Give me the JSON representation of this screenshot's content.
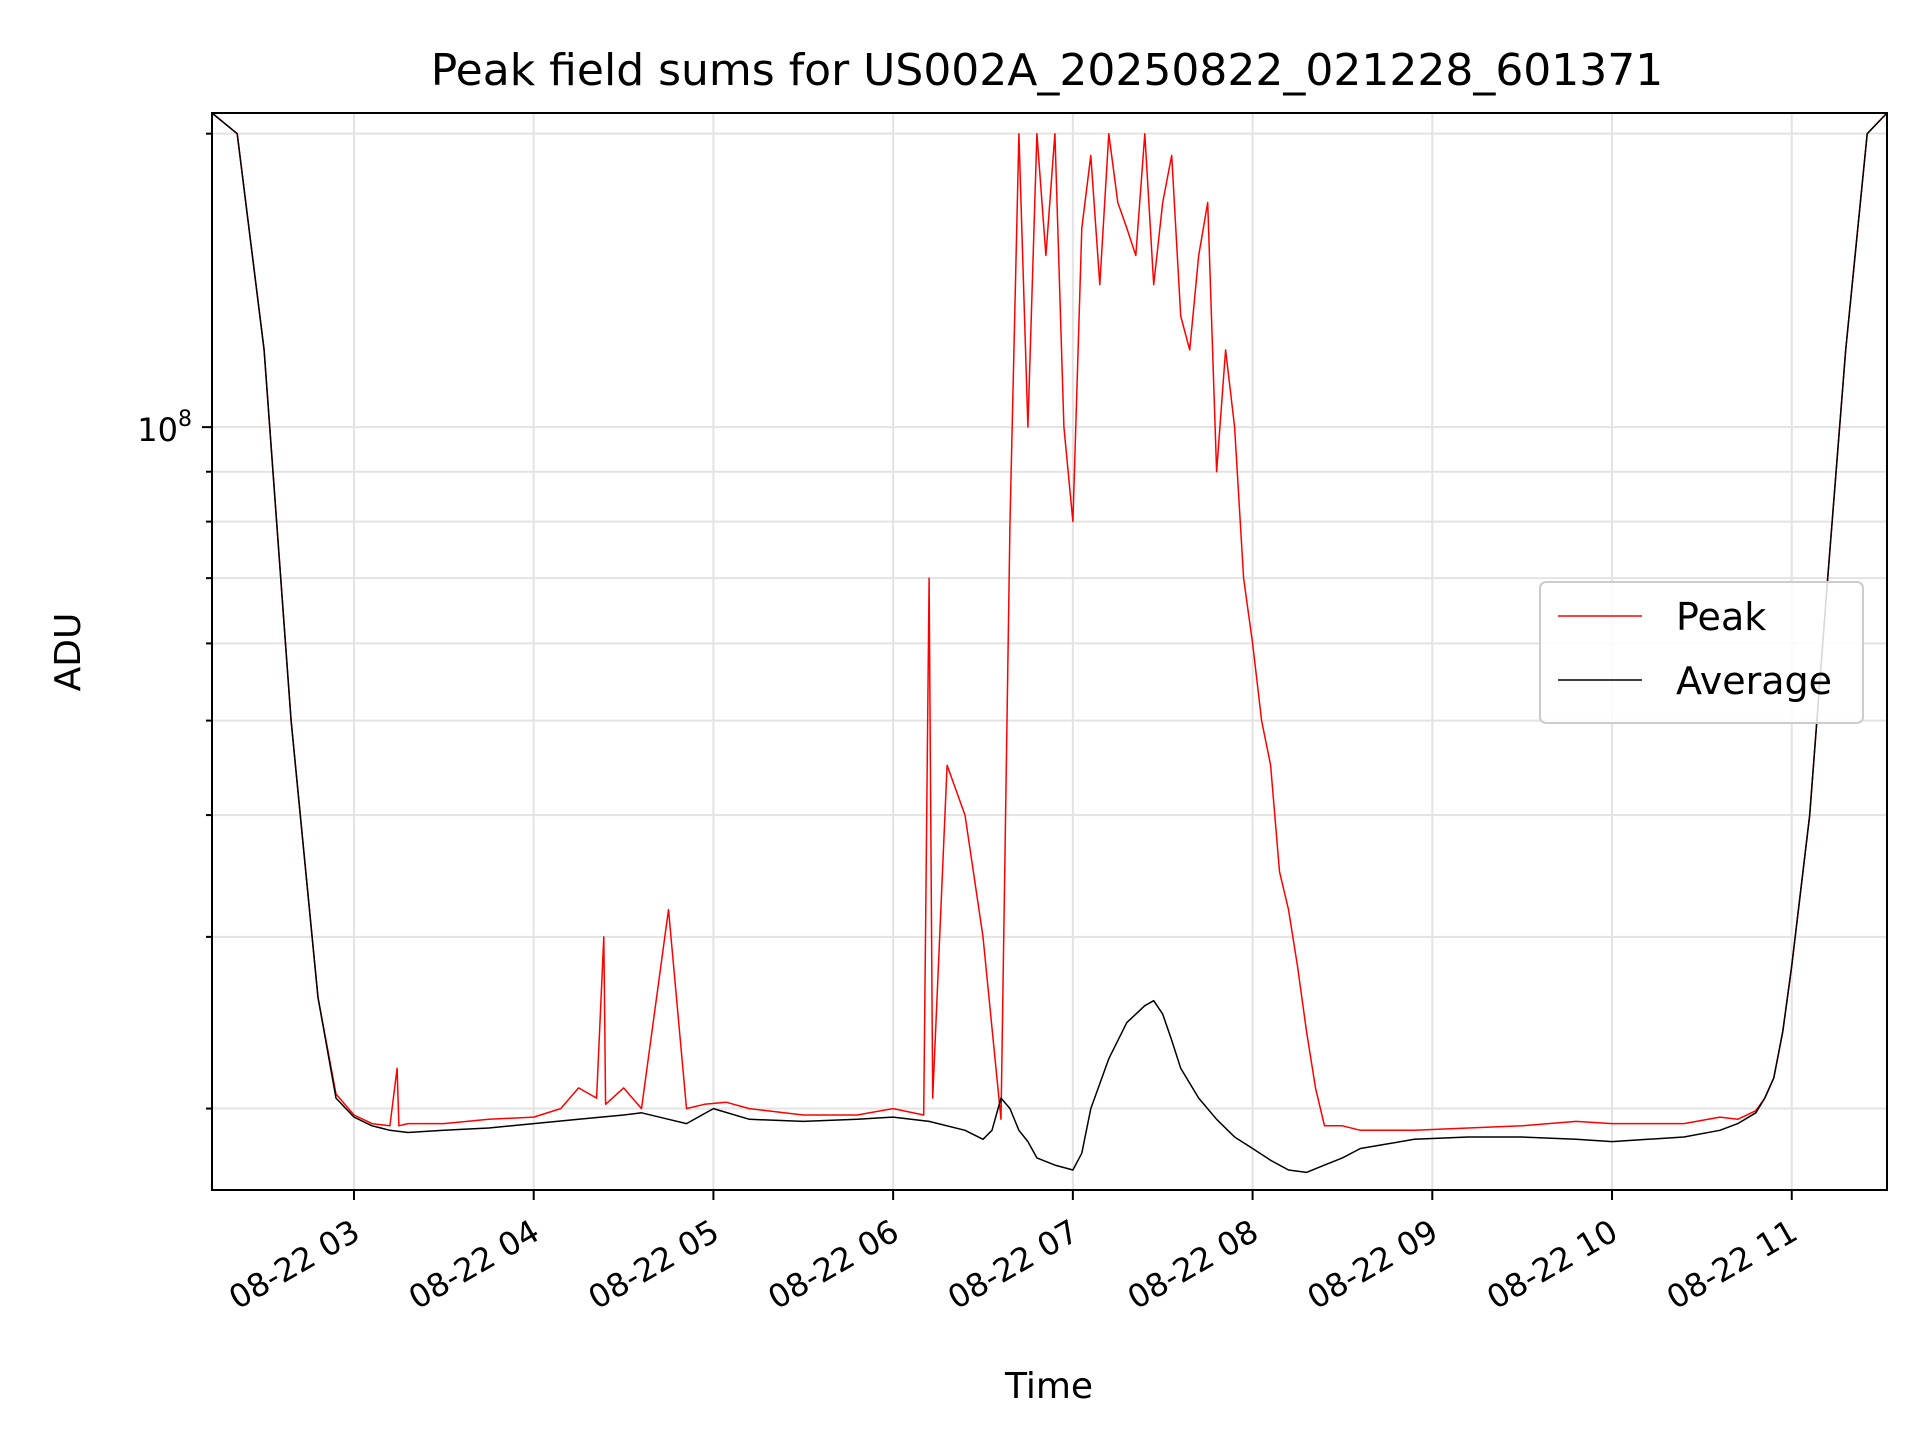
{
  "chart_data": {
    "type": "line",
    "title": "Peak field sums for US002A_20250822_021228_601371",
    "xlabel": "Time",
    "ylabel": "ADU",
    "yscale": "log",
    "y_major_tick_label": "10",
    "y_major_tick_exponent": "8",
    "y_major_tick_value": 100000000,
    "ylim": [
      16500000,
      210000000
    ],
    "x_unit": "hours (2025-08-22)",
    "xlim": [
      2.21,
      11.53
    ],
    "x_ticks": [
      {
        "value": 3,
        "label": "08-22 03"
      },
      {
        "value": 4,
        "label": "08-22 04"
      },
      {
        "value": 5,
        "label": "08-22 05"
      },
      {
        "value": 6,
        "label": "08-22 06"
      },
      {
        "value": 7,
        "label": "08-22 07"
      },
      {
        "value": 8,
        "label": "08-22 08"
      },
      {
        "value": 9,
        "label": "08-22 09"
      },
      {
        "value": 10,
        "label": "08-22 10"
      },
      {
        "value": 11,
        "label": "08-22 11"
      }
    ],
    "y_minor_ticks": [
      20000000,
      30000000,
      40000000,
      50000000,
      60000000,
      70000000,
      80000000,
      90000000,
      200000000
    ],
    "grid": true,
    "legend_position": "center-right",
    "series": [
      {
        "name": "Peak",
        "color": "#ff0000",
        "x": [
          2.21,
          2.35,
          2.5,
          2.65,
          2.8,
          2.9,
          3.0,
          3.1,
          3.2,
          3.24,
          3.25,
          3.3,
          3.5,
          3.75,
          4.0,
          4.15,
          4.25,
          4.35,
          4.39,
          4.4,
          4.5,
          4.6,
          4.75,
          4.85,
          4.95,
          5.07,
          5.2,
          5.5,
          5.8,
          6.0,
          6.17,
          6.2,
          6.22,
          6.3,
          6.4,
          6.5,
          6.6,
          6.65,
          6.7,
          6.75,
          6.8,
          6.85,
          6.9,
          6.95,
          7.0,
          7.05,
          7.1,
          7.15,
          7.2,
          7.25,
          7.3,
          7.35,
          7.4,
          7.45,
          7.5,
          7.55,
          7.6,
          7.65,
          7.7,
          7.75,
          7.8,
          7.85,
          7.9,
          7.95,
          8.0,
          8.05,
          8.1,
          8.15,
          8.2,
          8.25,
          8.3,
          8.35,
          8.4,
          8.5,
          8.6,
          8.9,
          9.2,
          9.5,
          9.8,
          10.0,
          10.2,
          10.4,
          10.6,
          10.7,
          10.8,
          10.85,
          10.9,
          10.95,
          11.0,
          11.1,
          11.2,
          11.3,
          11.42,
          11.53
        ],
        "y": [
          210000000,
          200000000,
          120000000,
          50000000,
          26000000,
          20700000,
          19700000,
          19300000,
          19200000,
          22000000,
          19200000,
          19300000,
          19300000,
          19500000,
          19600000,
          20000000,
          21000000,
          20500000,
          30000000,
          20200000,
          21000000,
          20000000,
          32000000,
          20000000,
          20200000,
          20300000,
          20000000,
          19700000,
          19700000,
          20000000,
          19700000,
          70000000,
          20500000,
          45000000,
          40000000,
          30000000,
          19500000,
          80000000,
          200000000,
          100000000,
          200000000,
          150000000,
          200000000,
          100000000,
          80000000,
          160000000,
          190000000,
          140000000,
          200000000,
          170000000,
          160000000,
          150000000,
          200000000,
          140000000,
          170000000,
          190000000,
          130000000,
          120000000,
          150000000,
          170000000,
          90000000,
          120000000,
          100000000,
          70000000,
          60000000,
          50000000,
          45000000,
          35000000,
          32000000,
          28000000,
          24000000,
          21000000,
          19200000,
          19200000,
          19000000,
          19000000,
          19100000,
          19200000,
          19400000,
          19300000,
          19300000,
          19300000,
          19600000,
          19500000,
          19900000,
          20500000,
          21500000,
          24000000,
          28000000,
          40000000,
          70000000,
          120000000,
          200000000,
          210000000
        ]
      },
      {
        "name": "Average",
        "color": "#000000",
        "x": [
          2.21,
          2.35,
          2.5,
          2.65,
          2.8,
          2.9,
          3.0,
          3.1,
          3.2,
          3.3,
          3.5,
          3.75,
          4.0,
          4.25,
          4.5,
          4.6,
          4.75,
          4.85,
          5.0,
          5.2,
          5.5,
          5.8,
          6.0,
          6.2,
          6.4,
          6.5,
          6.55,
          6.6,
          6.65,
          6.7,
          6.75,
          6.8,
          6.9,
          7.0,
          7.05,
          7.1,
          7.2,
          7.3,
          7.4,
          7.45,
          7.5,
          7.55,
          7.6,
          7.7,
          7.8,
          7.9,
          8.0,
          8.1,
          8.2,
          8.3,
          8.4,
          8.5,
          8.6,
          8.9,
          9.2,
          9.5,
          9.8,
          10.0,
          10.2,
          10.4,
          10.6,
          10.7,
          10.8,
          10.85,
          10.9,
          10.95,
          11.0,
          11.1,
          11.2,
          11.3,
          11.42,
          11.53
        ],
        "y": [
          210000000,
          200000000,
          120000000,
          50000000,
          26000000,
          20500000,
          19600000,
          19200000,
          19000000,
          18900000,
          19000000,
          19100000,
          19300000,
          19500000,
          19700000,
          19800000,
          19500000,
          19300000,
          20000000,
          19500000,
          19400000,
          19500000,
          19600000,
          19400000,
          19000000,
          18600000,
          19000000,
          20500000,
          20000000,
          19000000,
          18500000,
          17800000,
          17500000,
          17300000,
          18000000,
          20000000,
          22500000,
          24500000,
          25500000,
          25800000,
          25000000,
          23500000,
          22000000,
          20500000,
          19500000,
          18700000,
          18200000,
          17700000,
          17300000,
          17200000,
          17500000,
          17800000,
          18200000,
          18600000,
          18700000,
          18700000,
          18600000,
          18500000,
          18600000,
          18700000,
          19000000,
          19300000,
          19800000,
          20500000,
          21500000,
          24000000,
          28000000,
          40000000,
          70000000,
          120000000,
          200000000,
          210000000
        ]
      }
    ]
  }
}
